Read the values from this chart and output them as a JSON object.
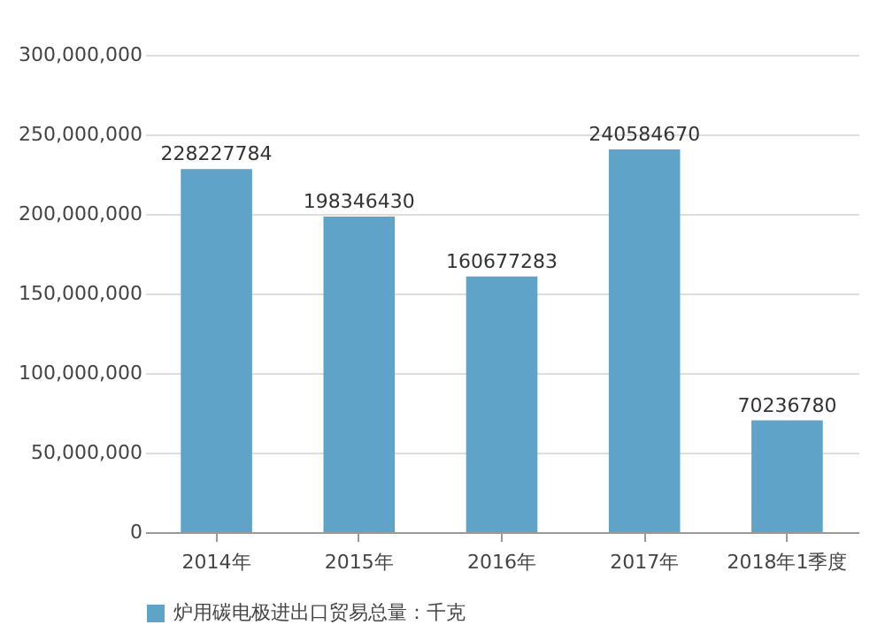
{
  "chart_data": {
    "type": "bar",
    "categories": [
      "2014年",
      "2015年",
      "2016年",
      "2017年",
      "2018年1季度"
    ],
    "series": [
      {
        "name": "炉用碳电极进出口贸易总量：千克",
        "color": "#5fa3c9",
        "values": [
          228227784,
          198346430,
          160677283,
          240584670,
          70236780
        ]
      }
    ],
    "ylim": [
      0,
      300000000
    ],
    "yticks": [
      {
        "value": 0,
        "label": "0"
      },
      {
        "value": 50000000,
        "label": "50,000,000"
      },
      {
        "value": 100000000,
        "label": "100,000,000"
      },
      {
        "value": 150000000,
        "label": "150,000,000"
      },
      {
        "value": 200000000,
        "label": "200,000,000"
      },
      {
        "value": 250000000,
        "label": "250,000,000"
      },
      {
        "value": 300000000,
        "label": "300,000,000"
      }
    ],
    "grid": "y",
    "legend": "bottom",
    "data_labels": true
  }
}
